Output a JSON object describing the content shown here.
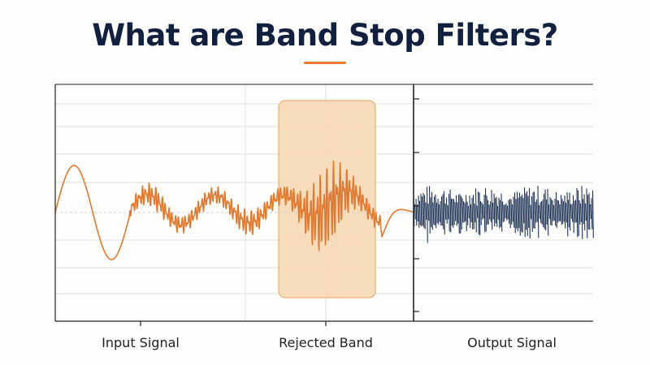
{
  "title": "What are Band Stop Filters?",
  "labels": {
    "input": "Input Signal",
    "rejected": "Rejected Band",
    "output": "Output Signal"
  },
  "colors": {
    "title": "#12203f",
    "accent": "#e8792e",
    "input_wave": "#e07a30",
    "rejected_band_fill": "#f7d9b6",
    "output_wave": "#1f3255",
    "grid": "#dcdcdc",
    "frame": "#222222"
  }
}
